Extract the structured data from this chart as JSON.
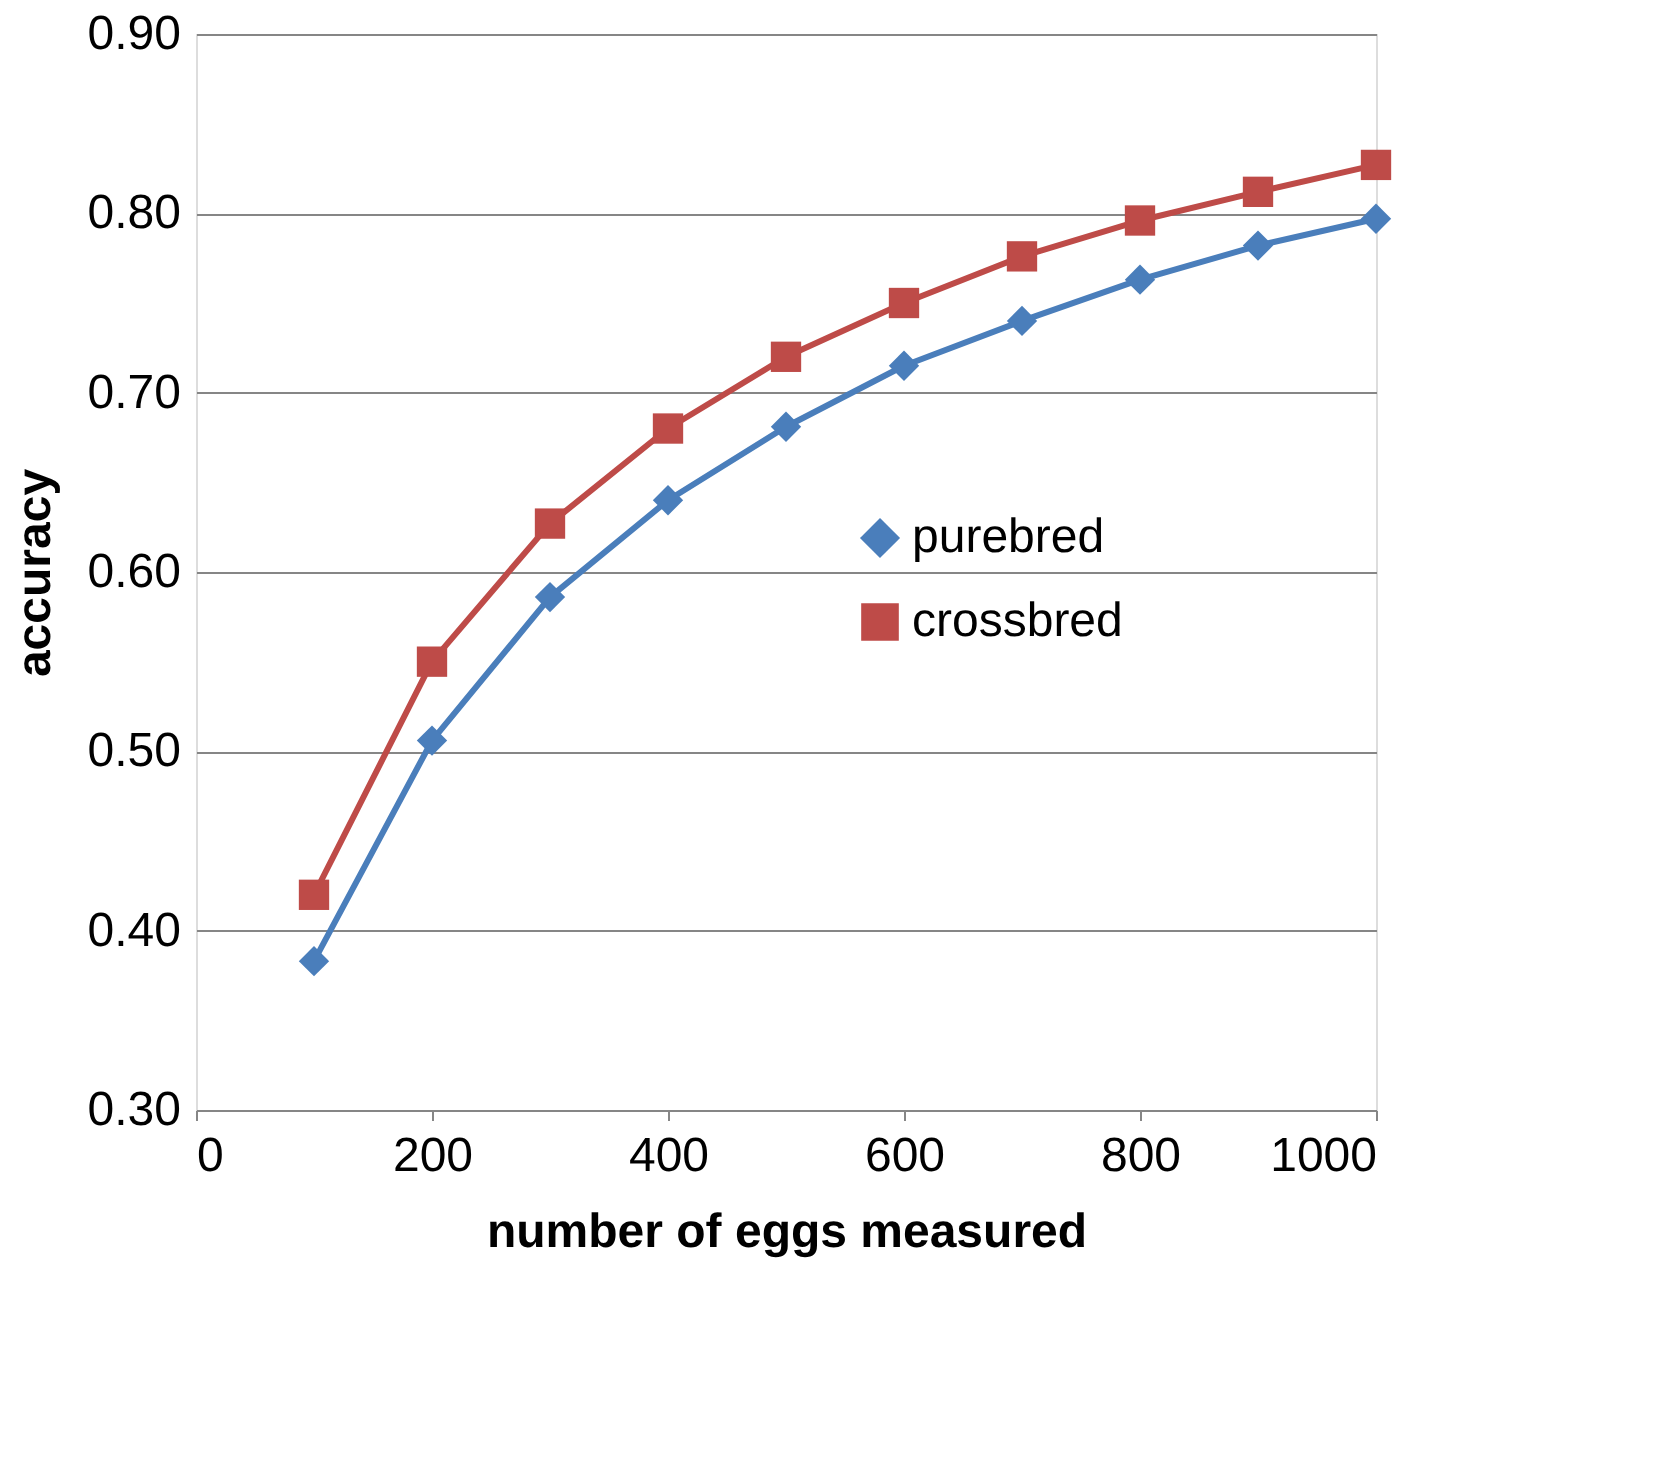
{
  "chart_data": {
    "type": "line",
    "xlabel": "number of eggs measured",
    "ylabel": "accuracy",
    "x": [
      100,
      200,
      300,
      400,
      500,
      600,
      700,
      800,
      900,
      1000
    ],
    "series": [
      {
        "name": "purebred",
        "color": "#4a7ebb",
        "marker": "diamond",
        "values": [
          0.383,
          0.506,
          0.586,
          0.64,
          0.681,
          0.715,
          0.74,
          0.763,
          0.782,
          0.797
        ]
      },
      {
        "name": "crossbred",
        "color": "#be4b48",
        "marker": "square",
        "values": [
          0.42,
          0.55,
          0.627,
          0.68,
          0.72,
          0.75,
          0.776,
          0.796,
          0.812,
          0.827
        ]
      }
    ],
    "xlim": [
      0,
      1000
    ],
    "xticks": [
      0,
      200,
      400,
      600,
      800,
      1000
    ],
    "ylim": [
      0.3,
      0.9
    ],
    "yticks": [
      {
        "value": 0.3,
        "label": "0.30"
      },
      {
        "value": 0.4,
        "label": "0.40"
      },
      {
        "value": 0.5,
        "label": "0.50"
      },
      {
        "value": 0.6,
        "label": "0.60"
      },
      {
        "value": 0.7,
        "label": "0.70"
      },
      {
        "value": 0.8,
        "label": "0.80"
      },
      {
        "value": 0.9,
        "label": "0.90"
      }
    ],
    "grid": "y",
    "legend": "right",
    "line_style": "solid"
  }
}
